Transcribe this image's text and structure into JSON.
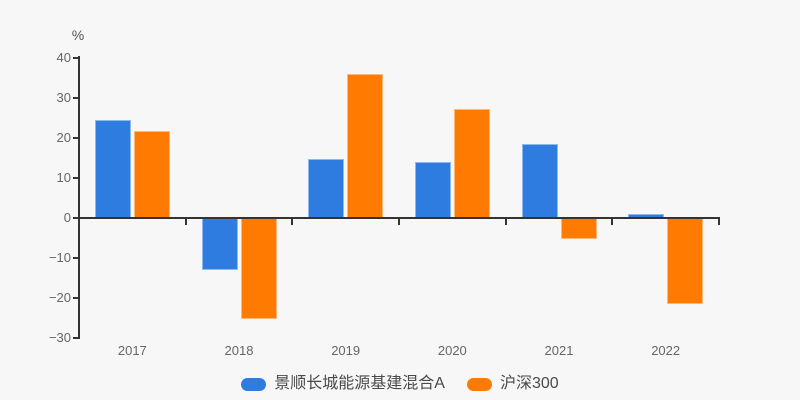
{
  "chart": {
    "background_color": "#f7f7f7",
    "axis_color": "#333333",
    "tick_label_color": "#666666",
    "legend_text_color": "#4a4a4a",
    "y_unit_label": "%"
  },
  "chart_data": {
    "type": "bar",
    "categories": [
      "2017",
      "2018",
      "2019",
      "2020",
      "2021",
      "2022"
    ],
    "series": [
      {
        "name": "景顺长城能源基建混合A",
        "color": "#2e7ce0",
        "border_color": "#8fb8ec",
        "values": [
          24.5,
          -13.1,
          14.8,
          14.1,
          18.4,
          1.1
        ]
      },
      {
        "name": "沪深300",
        "color": "#ff7a00",
        "border_color": "#ffb877",
        "values": [
          21.8,
          -25.3,
          36.1,
          27.2,
          -5.2,
          -21.6
        ]
      }
    ],
    "title": "",
    "xlabel": "",
    "ylabel": "%",
    "ylim": [
      -30,
      40
    ],
    "yticks": [
      40,
      30,
      20,
      10,
      0,
      -10,
      -20,
      -30
    ],
    "grid": false,
    "legend_position": "bottom"
  }
}
